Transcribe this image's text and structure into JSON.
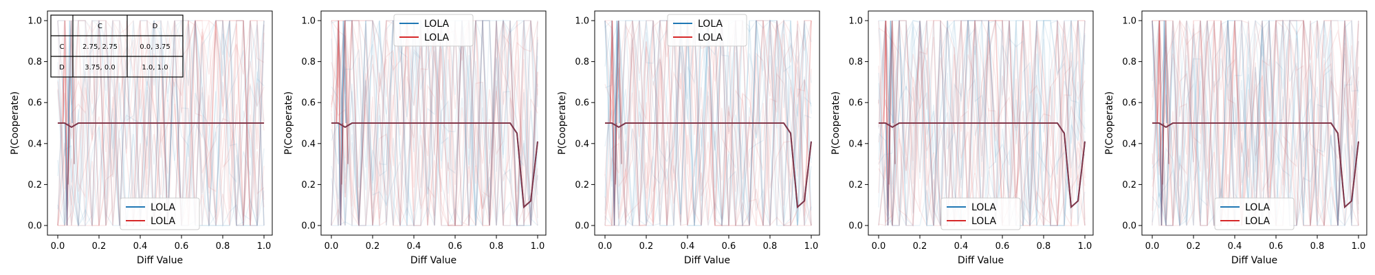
{
  "colors": {
    "blue": "#1f77b4",
    "red": "#d62728",
    "overlap": "#8c2d3c"
  },
  "payoff_table": {
    "header": [
      "",
      "C",
      "D"
    ],
    "rows": [
      [
        "C",
        "2.75, 2.75",
        "0.0, 3.75"
      ],
      [
        "D",
        "3.75, 0.0",
        "1.0, 1.0"
      ]
    ]
  },
  "chart_data": [
    {
      "type": "line",
      "xlabel": "Diff Value",
      "ylabel": "P(Cooperate)",
      "xlim": [
        0,
        1
      ],
      "ylim": [
        0,
        1
      ],
      "xticks": [
        "0.0",
        "0.2",
        "0.4",
        "0.6",
        "0.8",
        "1.0"
      ],
      "yticks": [
        "0.0",
        "0.2",
        "0.4",
        "0.6",
        "0.8",
        "1.0"
      ],
      "legend": {
        "loc": "lower center",
        "entries": [
          "LOLA",
          "LOLA"
        ]
      },
      "has_table": true,
      "x": [
        0,
        0.0333,
        0.0667,
        0.1,
        0.1333,
        0.1667,
        0.2,
        0.2333,
        0.2667,
        0.3,
        0.3333,
        0.3667,
        0.4,
        0.4333,
        0.4667,
        0.5,
        0.5333,
        0.5667,
        0.6,
        0.6333,
        0.6667,
        0.7,
        0.7333,
        0.7667,
        0.8,
        0.8333,
        0.8667,
        0.9,
        0.9333,
        0.9667,
        1.0
      ],
      "series": [
        {
          "name": "LOLA",
          "color": "blue",
          "values": [
            0.5,
            0.5,
            0.48,
            0.5,
            0.5,
            0.5,
            0.5,
            0.5,
            0.5,
            0.5,
            0.5,
            0.5,
            0.5,
            0.5,
            0.5,
            0.5,
            0.5,
            0.5,
            0.5,
            0.5,
            0.5,
            0.5,
            0.5,
            0.5,
            0.5,
            0.5,
            0.5,
            0.5,
            0.5,
            0.5,
            0.5
          ]
        },
        {
          "name": "LOLA",
          "color": "red",
          "values": [
            0.5,
            0.5,
            0.48,
            0.5,
            0.5,
            0.5,
            0.5,
            0.5,
            0.5,
            0.5,
            0.5,
            0.5,
            0.5,
            0.5,
            0.5,
            0.5,
            0.5,
            0.5,
            0.5,
            0.5,
            0.5,
            0.5,
            0.5,
            0.5,
            0.5,
            0.5,
            0.5,
            0.5,
            0.5,
            0.5,
            0.5
          ]
        }
      ]
    },
    {
      "type": "line",
      "xlabel": "Diff Value",
      "ylabel": "P(Cooperate)",
      "xlim": [
        0,
        1
      ],
      "ylim": [
        0,
        1
      ],
      "xticks": [
        "0.0",
        "0.2",
        "0.4",
        "0.6",
        "0.8",
        "1.0"
      ],
      "yticks": [
        "0.0",
        "0.2",
        "0.4",
        "0.6",
        "0.8",
        "1.0"
      ],
      "legend": {
        "loc": "upper center",
        "entries": [
          "LOLA",
          "LOLA"
        ]
      },
      "has_table": false,
      "x": [
        0,
        0.0333,
        0.0667,
        0.1,
        0.1333,
        0.1667,
        0.2,
        0.2333,
        0.2667,
        0.3,
        0.3333,
        0.3667,
        0.4,
        0.4333,
        0.4667,
        0.5,
        0.5333,
        0.5667,
        0.6,
        0.6333,
        0.6667,
        0.7,
        0.7333,
        0.7667,
        0.8,
        0.8333,
        0.8667,
        0.9,
        0.9333,
        0.9667,
        1.0
      ],
      "series": [
        {
          "name": "LOLA",
          "color": "blue",
          "values": [
            0.5,
            0.5,
            0.48,
            0.5,
            0.5,
            0.5,
            0.5,
            0.5,
            0.5,
            0.5,
            0.5,
            0.5,
            0.5,
            0.5,
            0.5,
            0.5,
            0.5,
            0.5,
            0.5,
            0.5,
            0.5,
            0.5,
            0.5,
            0.5,
            0.5,
            0.5,
            0.5,
            0.45,
            0.09,
            0.12,
            0.41
          ]
        },
        {
          "name": "LOLA",
          "color": "red",
          "values": [
            0.5,
            0.5,
            0.48,
            0.5,
            0.5,
            0.5,
            0.5,
            0.5,
            0.5,
            0.5,
            0.5,
            0.5,
            0.5,
            0.5,
            0.5,
            0.5,
            0.5,
            0.5,
            0.5,
            0.5,
            0.5,
            0.5,
            0.5,
            0.5,
            0.5,
            0.5,
            0.5,
            0.45,
            0.09,
            0.12,
            0.41
          ]
        }
      ]
    },
    {
      "type": "line",
      "xlabel": "Diff Value",
      "ylabel": "P(Cooperate)",
      "xlim": [
        0,
        1
      ],
      "ylim": [
        0,
        1
      ],
      "xticks": [
        "0.0",
        "0.2",
        "0.4",
        "0.6",
        "0.8",
        "1.0"
      ],
      "yticks": [
        "0.0",
        "0.2",
        "0.4",
        "0.6",
        "0.8",
        "1.0"
      ],
      "legend": {
        "loc": "upper center",
        "entries": [
          "LOLA",
          "LOLA"
        ]
      },
      "has_table": false,
      "x": [
        0,
        0.0333,
        0.0667,
        0.1,
        0.1333,
        0.1667,
        0.2,
        0.2333,
        0.2667,
        0.3,
        0.3333,
        0.3667,
        0.4,
        0.4333,
        0.4667,
        0.5,
        0.5333,
        0.5667,
        0.6,
        0.6333,
        0.6667,
        0.7,
        0.7333,
        0.7667,
        0.8,
        0.8333,
        0.8667,
        0.9,
        0.9333,
        0.9667,
        1.0
      ],
      "series": [
        {
          "name": "LOLA",
          "color": "blue",
          "values": [
            0.5,
            0.5,
            0.48,
            0.5,
            0.5,
            0.5,
            0.5,
            0.5,
            0.5,
            0.5,
            0.5,
            0.5,
            0.5,
            0.5,
            0.5,
            0.5,
            0.5,
            0.5,
            0.5,
            0.5,
            0.5,
            0.5,
            0.5,
            0.5,
            0.5,
            0.5,
            0.5,
            0.45,
            0.09,
            0.12,
            0.41
          ]
        },
        {
          "name": "LOLA",
          "color": "red",
          "values": [
            0.5,
            0.5,
            0.48,
            0.5,
            0.5,
            0.5,
            0.5,
            0.5,
            0.5,
            0.5,
            0.5,
            0.5,
            0.5,
            0.5,
            0.5,
            0.5,
            0.5,
            0.5,
            0.5,
            0.5,
            0.5,
            0.5,
            0.5,
            0.5,
            0.5,
            0.5,
            0.5,
            0.45,
            0.09,
            0.12,
            0.41
          ]
        }
      ]
    },
    {
      "type": "line",
      "xlabel": "Diff Value",
      "ylabel": "P(Cooperate)",
      "xlim": [
        0,
        1
      ],
      "ylim": [
        0,
        1
      ],
      "xticks": [
        "0.0",
        "0.2",
        "0.4",
        "0.6",
        "0.8",
        "1.0"
      ],
      "yticks": [
        "0.0",
        "0.2",
        "0.4",
        "0.6",
        "0.8",
        "1.0"
      ],
      "legend": {
        "loc": "lower center",
        "entries": [
          "LOLA",
          "LOLA"
        ]
      },
      "has_table": false,
      "x": [
        0,
        0.0333,
        0.0667,
        0.1,
        0.1333,
        0.1667,
        0.2,
        0.2333,
        0.2667,
        0.3,
        0.3333,
        0.3667,
        0.4,
        0.4333,
        0.4667,
        0.5,
        0.5333,
        0.5667,
        0.6,
        0.6333,
        0.6667,
        0.7,
        0.7333,
        0.7667,
        0.8,
        0.8333,
        0.8667,
        0.9,
        0.9333,
        0.9667,
        1.0
      ],
      "series": [
        {
          "name": "LOLA",
          "color": "blue",
          "values": [
            0.5,
            0.5,
            0.48,
            0.5,
            0.5,
            0.5,
            0.5,
            0.5,
            0.5,
            0.5,
            0.5,
            0.5,
            0.5,
            0.5,
            0.5,
            0.5,
            0.5,
            0.5,
            0.5,
            0.5,
            0.5,
            0.5,
            0.5,
            0.5,
            0.5,
            0.5,
            0.5,
            0.45,
            0.09,
            0.12,
            0.41
          ]
        },
        {
          "name": "LOLA",
          "color": "red",
          "values": [
            0.5,
            0.5,
            0.48,
            0.5,
            0.5,
            0.5,
            0.5,
            0.5,
            0.5,
            0.5,
            0.5,
            0.5,
            0.5,
            0.5,
            0.5,
            0.5,
            0.5,
            0.5,
            0.5,
            0.5,
            0.5,
            0.5,
            0.5,
            0.5,
            0.5,
            0.5,
            0.5,
            0.45,
            0.09,
            0.12,
            0.41
          ]
        }
      ]
    },
    {
      "type": "line",
      "xlabel": "Diff Value",
      "ylabel": "P(Cooperate)",
      "xlim": [
        0,
        1
      ],
      "ylim": [
        0,
        1
      ],
      "xticks": [
        "0.0",
        "0.2",
        "0.4",
        "0.6",
        "0.8",
        "1.0"
      ],
      "yticks": [
        "0.0",
        "0.2",
        "0.4",
        "0.6",
        "0.8",
        "1.0"
      ],
      "legend": {
        "loc": "lower center",
        "entries": [
          "LOLA",
          "LOLA"
        ]
      },
      "has_table": false,
      "x": [
        0,
        0.0333,
        0.0667,
        0.1,
        0.1333,
        0.1667,
        0.2,
        0.2333,
        0.2667,
        0.3,
        0.3333,
        0.3667,
        0.4,
        0.4333,
        0.4667,
        0.5,
        0.5333,
        0.5667,
        0.6,
        0.6333,
        0.6667,
        0.7,
        0.7333,
        0.7667,
        0.8,
        0.8333,
        0.8667,
        0.9,
        0.9333,
        0.9667,
        1.0
      ],
      "series": [
        {
          "name": "LOLA",
          "color": "blue",
          "values": [
            0.5,
            0.5,
            0.48,
            0.5,
            0.5,
            0.5,
            0.5,
            0.5,
            0.5,
            0.5,
            0.5,
            0.5,
            0.5,
            0.5,
            0.5,
            0.5,
            0.5,
            0.5,
            0.5,
            0.5,
            0.5,
            0.5,
            0.5,
            0.5,
            0.5,
            0.5,
            0.5,
            0.45,
            0.09,
            0.12,
            0.41
          ]
        },
        {
          "name": "LOLA",
          "color": "red",
          "values": [
            0.5,
            0.5,
            0.48,
            0.5,
            0.5,
            0.5,
            0.5,
            0.5,
            0.5,
            0.5,
            0.5,
            0.5,
            0.5,
            0.5,
            0.5,
            0.5,
            0.5,
            0.5,
            0.5,
            0.5,
            0.5,
            0.5,
            0.5,
            0.5,
            0.5,
            0.5,
            0.5,
            0.45,
            0.09,
            0.12,
            0.41
          ]
        }
      ]
    }
  ]
}
